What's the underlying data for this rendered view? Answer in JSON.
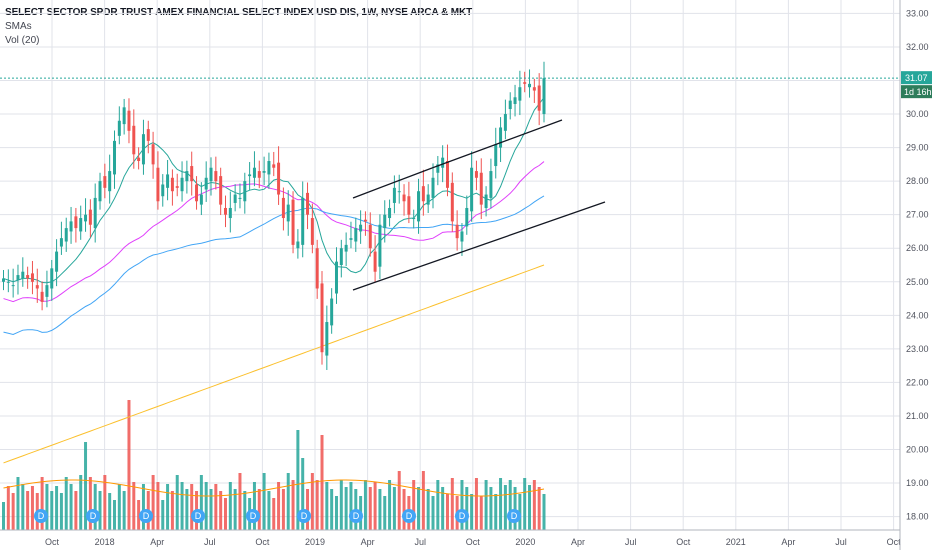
{
  "header": {
    "title": "SELECT SECTOR SPDR TRUST AMEX FINANCIAL SELECT INDEX USD DIS, 1W, NYSE ARCA & MKT",
    "indicators": [
      "SMAs",
      "Vol (20)"
    ]
  },
  "price_axis": {
    "ticks": [
      "33.00",
      "32.00",
      "31.00",
      "30.00",
      "29.00",
      "28.00",
      "27.00",
      "26.00",
      "25.00",
      "24.00",
      "23.00",
      "22.00",
      "21.00",
      "20.00",
      "19.00",
      "18.00"
    ],
    "last_price_label": "31.07",
    "countdown_label": "1d 16h"
  },
  "time_axis": {
    "ticks": [
      "Oct",
      "2018",
      "Apr",
      "Jul",
      "Oct",
      "2019",
      "Apr",
      "Jul",
      "Oct",
      "2020",
      "Apr",
      "Jul",
      "Oct",
      "2021",
      "Apr",
      "Jul",
      "Oct"
    ]
  },
  "dividend_marker_label": "D",
  "colors": {
    "up": "#26a69a",
    "down": "#ef5350",
    "vol_up": "#26a69a",
    "vol_down": "#ef5350",
    "sma_short": "#26a69a",
    "sma_mid": "#e040fb",
    "sma_long": "#42a5f5",
    "sma_longest": "#fbc02d",
    "vol_ma": "#ff9800",
    "trendline": "#131722",
    "grid": "#e1e3ea",
    "last_price_bg": "#26a69a",
    "dividend_bg": "#42a5f5"
  },
  "chart_data": {
    "type": "candlestick",
    "title": "SELECT SECTOR SPDR TRUST AMEX FINANCIAL SELECT INDEX USD DIS, 1W, NYSE ARCA & MKT",
    "timeframe": "1W",
    "ylim": [
      17.6,
      33.4
    ],
    "grid": true,
    "last_price": 31.07,
    "series": [
      {
        "name": "SMAs",
        "note": "price moving averages (4 lines)"
      },
      {
        "name": "Vol (20)",
        "note": "volume bars with 20-period MA"
      }
    ],
    "close": [
      25.1,
      25.0,
      24.9,
      25.2,
      25.3,
      25.1,
      25.0,
      24.8,
      24.4,
      24.9,
      25.4,
      25.9,
      26.3,
      26.6,
      26.8,
      26.6,
      26.9,
      27.0,
      26.7,
      27.5,
      28.0,
      27.8,
      28.3,
      29.2,
      29.8,
      30.2,
      29.5,
      28.8,
      28.6,
      29.4,
      29.2,
      28.5,
      27.4,
      27.9,
      28.2,
      27.7,
      27.8,
      28.1,
      28.3,
      28.0,
      27.4,
      27.6,
      28.1,
      28.4,
      28.0,
      27.3,
      27.0,
      27.2,
      27.6,
      27.5,
      28.0,
      28.2,
      28.4,
      28.1,
      28.3,
      28.6,
      28.4,
      27.6,
      26.9,
      27.3,
      26.1,
      26.2,
      27.5,
      27.0,
      26.1,
      24.8,
      22.9,
      23.8,
      24.5,
      25.6,
      26.0,
      26.1,
      26.3,
      26.6,
      26.7,
      26.8,
      26.0,
      25.3,
      26.7,
      27.0,
      27.2,
      27.8,
      27.7,
      27.4,
      27.0,
      26.9,
      27.7,
      27.4,
      27.6,
      28.1,
      28.5,
      28.7,
      27.8,
      26.8,
      26.3,
      26.5,
      27.2,
      28.4,
      28.1,
      27.3,
      27.6,
      28.3,
      29.1,
      29.6,
      30.0,
      30.4,
      30.5,
      30.8,
      30.9,
      30.9,
      30.7,
      30.1,
      31.07
    ],
    "volume_note": "weekly volume bars, tallest spike near Jan 2018",
    "trendlines": [
      {
        "from": {
          "date": "Feb 2019",
          "price": 28.0
        },
        "to": {
          "date": "Oct 2019",
          "price": 28.9
        }
      },
      {
        "from": {
          "date": "Feb 2019",
          "price": 25.0
        },
        "to": {
          "date": "Mar 2020",
          "price": 27.6
        }
      }
    ]
  }
}
